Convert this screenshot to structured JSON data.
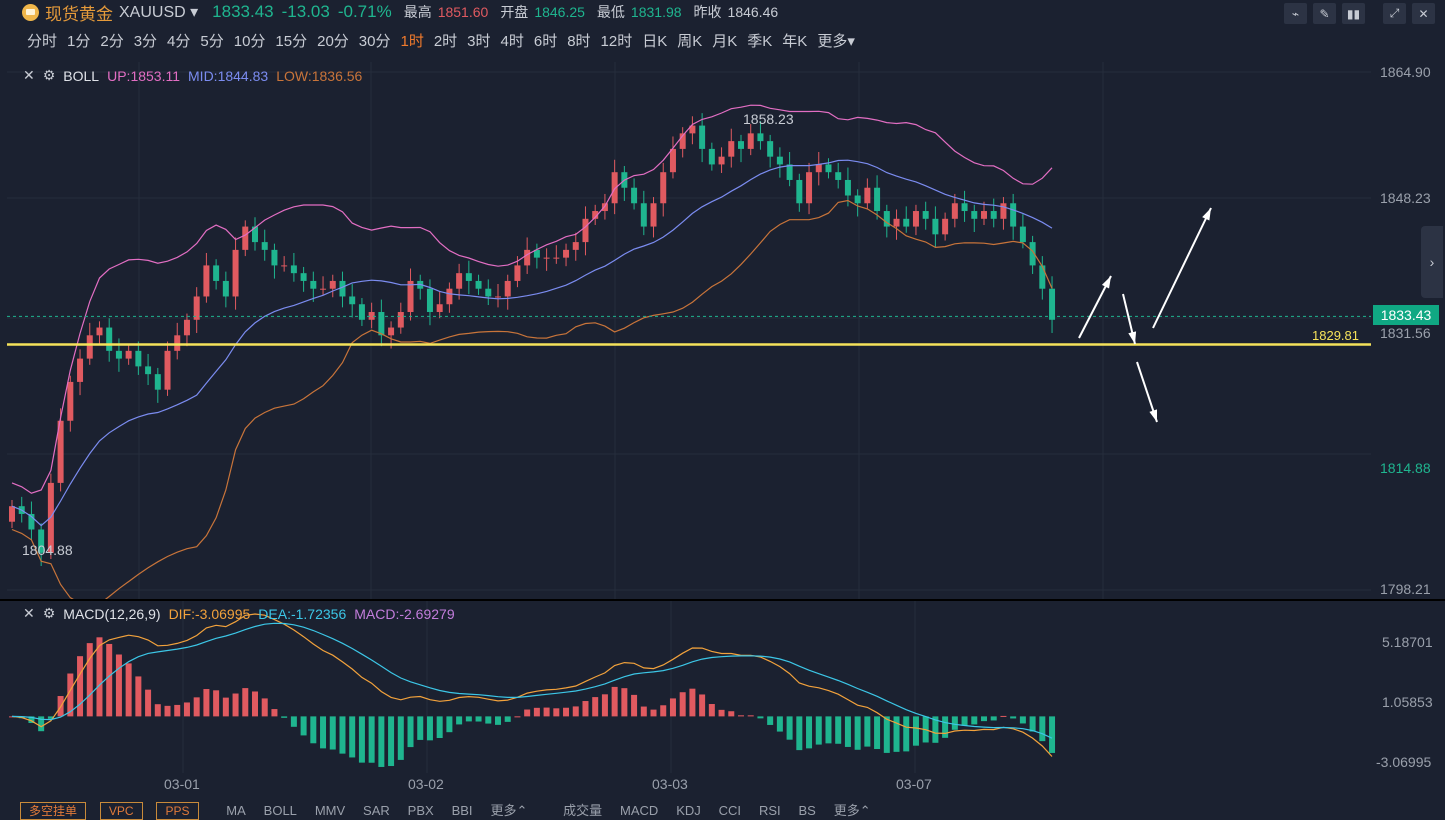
{
  "header": {
    "name": "现货黄金",
    "symbol": "XAUUSD",
    "price": "1833.43",
    "change": "-13.03",
    "change_pct": "-0.71%",
    "high_label": "最高",
    "high": "1851.60",
    "open_label": "开盘",
    "open": "1846.25",
    "low_label": "最低",
    "low": "1831.98",
    "prev_label": "昨收",
    "prev": "1846.46"
  },
  "timeframes": [
    "分时",
    "1分",
    "2分",
    "3分",
    "4分",
    "5分",
    "10分",
    "15分",
    "20分",
    "30分",
    "1时",
    "2时",
    "3时",
    "4时",
    "6时",
    "8时",
    "12时",
    "日K",
    "周K",
    "月K",
    "季K",
    "年K",
    "更多▾"
  ],
  "active_timeframe": "1时",
  "boll": {
    "name": "BOLL",
    "up": "UP:1853.11",
    "mid": "MID:1844.83",
    "low": "LOW:1836.56"
  },
  "macd": {
    "name": "MACD(12,26,9)",
    "dif": "DIF:-3.06995",
    "dea": "DEA:-1.72356",
    "macd": "MACD:-2.69279"
  },
  "price_axis": {
    "p1": "1864.90",
    "p2": "1848.23",
    "p3": "1833.43",
    "p4": "1831.56",
    "p5": "1814.88",
    "p6": "1798.21"
  },
  "macd_axis": {
    "m1": "5.18701",
    "m2": "1.05853",
    "m3": "-3.06995"
  },
  "support_line_label": "1829.81",
  "max_label": "1858.23",
  "min_label": "1804.88",
  "dates": [
    "03-01",
    "03-02",
    "03-03",
    "03-07"
  ],
  "bottom": {
    "buttons": [
      "多空挂单",
      "VPC",
      "PPS"
    ],
    "main_inds": [
      "MA",
      "BOLL",
      "MMV",
      "SAR",
      "PBX",
      "BBI",
      "更多⌃"
    ],
    "sub_inds": [
      "成交量",
      "MACD",
      "KDJ",
      "CCI",
      "RSI",
      "BS",
      "更多⌃"
    ]
  },
  "colors": {
    "up": "#e05a60",
    "down": "#1fb58f",
    "boll_up": "#e26ec3",
    "boll_mid": "#7b8cf0",
    "boll_low": "#c8743a",
    "dif": "#f2a23c",
    "dea": "#3cc6e6",
    "support": "#f5e25a"
  },
  "chart_data": {
    "type": "candlestick",
    "title": "",
    "y_range": [
      1798.21,
      1864.9
    ],
    "support_level": 1829.81,
    "last_price": 1833.43,
    "x_dates": [
      "03-01",
      "03-02",
      "03-03",
      "03-07"
    ],
    "closes": [
      1809,
      1808,
      1806,
      1803,
      1812,
      1820,
      1825,
      1828,
      1831,
      1832,
      1829,
      1828,
      1829,
      1827,
      1826,
      1824,
      1829,
      1831,
      1833,
      1836,
      1840,
      1838,
      1836,
      1842,
      1845,
      1843,
      1842,
      1840,
      1840,
      1839,
      1838,
      1837,
      1837,
      1838,
      1836,
      1835,
      1833,
      1834,
      1831,
      1832,
      1834,
      1838,
      1837,
      1834,
      1835,
      1837,
      1839,
      1838,
      1837,
      1836,
      1836,
      1838,
      1840,
      1842,
      1841,
      1841,
      1841,
      1842,
      1843,
      1846,
      1847,
      1848,
      1852,
      1850,
      1848,
      1845,
      1848,
      1852,
      1855,
      1857,
      1858,
      1855,
      1853,
      1854,
      1856,
      1855,
      1857,
      1856,
      1854,
      1853,
      1851,
      1848,
      1852,
      1853,
      1852,
      1851,
      1849,
      1848,
      1850,
      1847,
      1845,
      1846,
      1845,
      1847,
      1846,
      1844,
      1846,
      1848,
      1847,
      1846,
      1847,
      1846,
      1848,
      1845,
      1843,
      1840,
      1837,
      1833
    ]
  }
}
